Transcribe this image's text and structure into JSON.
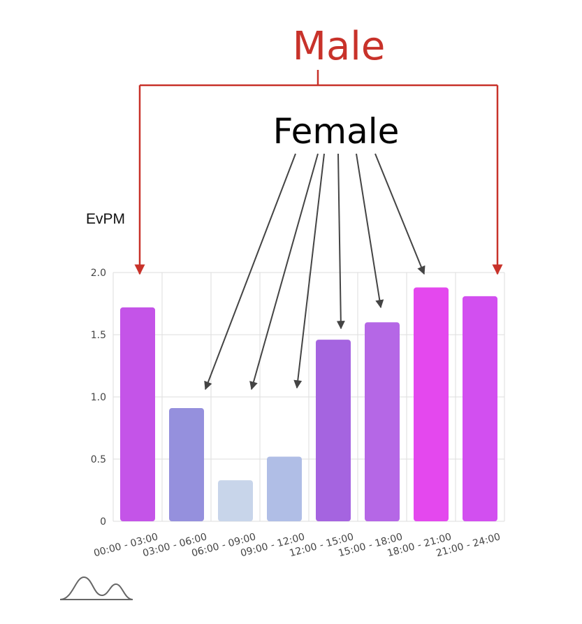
{
  "chart_data": {
    "type": "bar",
    "ylabel": "EvPM",
    "yticks": [
      "0",
      "0.5",
      "1.0",
      "1.5",
      "2.0"
    ],
    "ylim": [
      0,
      2.0
    ],
    "categories": [
      "00:00 - 03:00",
      "03:00 - 06:00",
      "06:00 - 09:00",
      "09:00 - 12:00",
      "12:00 - 15:00",
      "15:00 - 18:00",
      "18:00 - 21:00",
      "21:00 - 24:00"
    ],
    "values": [
      1.72,
      0.91,
      0.33,
      0.52,
      1.46,
      1.6,
      1.88,
      1.81
    ],
    "bar_colors": [
      "#c454e8",
      "#9590dd",
      "#c8d5ea",
      "#b0bee6",
      "#a564e0",
      "#b567e6",
      "#e448ee",
      "#d24ff0"
    ],
    "grid": true
  },
  "annotations": {
    "male_label": "Male",
    "female_label": "Female",
    "male_color": "#c8322a",
    "female_arrow_color": "#444444"
  }
}
